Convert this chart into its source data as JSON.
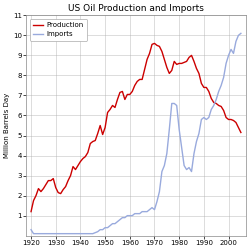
{
  "title": "US Oil Production and Imports",
  "ylabel": "Million Barrels Day",
  "xlim": [
    1918,
    2007
  ],
  "ylim": [
    0,
    11
  ],
  "yticks": [
    1,
    2,
    3,
    4,
    5,
    6,
    7,
    8,
    9,
    10,
    11
  ],
  "xticks": [
    1920,
    1930,
    1940,
    1950,
    1960,
    1970,
    1980,
    1990,
    2000
  ],
  "production_color": "#cc0000",
  "imports_color": "#99aadd",
  "bg_color": "#ffffff",
  "grid_color": "#aaaaaa",
  "production": [
    [
      1920,
      1.2
    ],
    [
      1921,
      1.75
    ],
    [
      1922,
      2.0
    ],
    [
      1923,
      2.35
    ],
    [
      1924,
      2.2
    ],
    [
      1925,
      2.35
    ],
    [
      1926,
      2.55
    ],
    [
      1927,
      2.75
    ],
    [
      1928,
      2.75
    ],
    [
      1929,
      2.85
    ],
    [
      1930,
      2.4
    ],
    [
      1931,
      2.15
    ],
    [
      1932,
      2.1
    ],
    [
      1933,
      2.3
    ],
    [
      1934,
      2.45
    ],
    [
      1935,
      2.75
    ],
    [
      1936,
      3.0
    ],
    [
      1937,
      3.45
    ],
    [
      1938,
      3.3
    ],
    [
      1939,
      3.5
    ],
    [
      1940,
      3.7
    ],
    [
      1941,
      3.85
    ],
    [
      1942,
      3.95
    ],
    [
      1943,
      4.15
    ],
    [
      1944,
      4.6
    ],
    [
      1945,
      4.7
    ],
    [
      1946,
      4.75
    ],
    [
      1947,
      5.1
    ],
    [
      1948,
      5.5
    ],
    [
      1949,
      5.05
    ],
    [
      1950,
      5.4
    ],
    [
      1951,
      6.15
    ],
    [
      1952,
      6.3
    ],
    [
      1953,
      6.5
    ],
    [
      1954,
      6.4
    ],
    [
      1955,
      6.8
    ],
    [
      1956,
      7.15
    ],
    [
      1957,
      7.2
    ],
    [
      1958,
      6.8
    ],
    [
      1959,
      7.05
    ],
    [
      1960,
      7.05
    ],
    [
      1961,
      7.2
    ],
    [
      1962,
      7.5
    ],
    [
      1963,
      7.7
    ],
    [
      1964,
      7.8
    ],
    [
      1965,
      7.8
    ],
    [
      1966,
      8.3
    ],
    [
      1967,
      8.8
    ],
    [
      1968,
      9.1
    ],
    [
      1969,
      9.55
    ],
    [
      1970,
      9.6
    ],
    [
      1971,
      9.5
    ],
    [
      1972,
      9.45
    ],
    [
      1973,
      9.2
    ],
    [
      1974,
      8.8
    ],
    [
      1975,
      8.4
    ],
    [
      1976,
      8.1
    ],
    [
      1977,
      8.25
    ],
    [
      1978,
      8.7
    ],
    [
      1979,
      8.55
    ],
    [
      1980,
      8.6
    ],
    [
      1981,
      8.6
    ],
    [
      1982,
      8.65
    ],
    [
      1983,
      8.7
    ],
    [
      1984,
      8.9
    ],
    [
      1985,
      9.0
    ],
    [
      1986,
      8.7
    ],
    [
      1987,
      8.35
    ],
    [
      1988,
      8.1
    ],
    [
      1989,
      7.6
    ],
    [
      1990,
      7.4
    ],
    [
      1991,
      7.4
    ],
    [
      1992,
      7.2
    ],
    [
      1993,
      6.85
    ],
    [
      1994,
      6.65
    ],
    [
      1995,
      6.6
    ],
    [
      1996,
      6.5
    ],
    [
      1997,
      6.45
    ],
    [
      1998,
      6.25
    ],
    [
      1999,
      5.9
    ],
    [
      2000,
      5.8
    ],
    [
      2001,
      5.8
    ],
    [
      2002,
      5.75
    ],
    [
      2003,
      5.65
    ],
    [
      2004,
      5.4
    ],
    [
      2005,
      5.15
    ]
  ],
  "imports": [
    [
      1920,
      0.3
    ],
    [
      1921,
      0.1
    ],
    [
      1922,
      0.1
    ],
    [
      1923,
      0.1
    ],
    [
      1924,
      0.1
    ],
    [
      1925,
      0.1
    ],
    [
      1926,
      0.1
    ],
    [
      1927,
      0.1
    ],
    [
      1928,
      0.1
    ],
    [
      1929,
      0.1
    ],
    [
      1930,
      0.1
    ],
    [
      1931,
      0.1
    ],
    [
      1932,
      0.1
    ],
    [
      1933,
      0.1
    ],
    [
      1934,
      0.1
    ],
    [
      1935,
      0.1
    ],
    [
      1936,
      0.1
    ],
    [
      1937,
      0.1
    ],
    [
      1938,
      0.1
    ],
    [
      1939,
      0.1
    ],
    [
      1940,
      0.1
    ],
    [
      1941,
      0.1
    ],
    [
      1942,
      0.1
    ],
    [
      1943,
      0.1
    ],
    [
      1944,
      0.1
    ],
    [
      1945,
      0.1
    ],
    [
      1946,
      0.15
    ],
    [
      1947,
      0.2
    ],
    [
      1948,
      0.3
    ],
    [
      1949,
      0.3
    ],
    [
      1950,
      0.4
    ],
    [
      1951,
      0.4
    ],
    [
      1952,
      0.5
    ],
    [
      1953,
      0.6
    ],
    [
      1954,
      0.6
    ],
    [
      1955,
      0.7
    ],
    [
      1956,
      0.8
    ],
    [
      1957,
      0.9
    ],
    [
      1958,
      0.9
    ],
    [
      1959,
      1.0
    ],
    [
      1960,
      1.0
    ],
    [
      1961,
      1.0
    ],
    [
      1962,
      1.1
    ],
    [
      1963,
      1.1
    ],
    [
      1964,
      1.1
    ],
    [
      1965,
      1.2
    ],
    [
      1966,
      1.2
    ],
    [
      1967,
      1.2
    ],
    [
      1968,
      1.3
    ],
    [
      1969,
      1.4
    ],
    [
      1970,
      1.3
    ],
    [
      1971,
      1.7
    ],
    [
      1972,
      2.2
    ],
    [
      1973,
      3.2
    ],
    [
      1974,
      3.5
    ],
    [
      1975,
      4.1
    ],
    [
      1976,
      5.3
    ],
    [
      1977,
      6.6
    ],
    [
      1978,
      6.6
    ],
    [
      1979,
      6.5
    ],
    [
      1980,
      5.3
    ],
    [
      1981,
      4.4
    ],
    [
      1982,
      3.5
    ],
    [
      1983,
      3.3
    ],
    [
      1984,
      3.4
    ],
    [
      1985,
      3.2
    ],
    [
      1986,
      4.1
    ],
    [
      1987,
      4.7
    ],
    [
      1988,
      5.1
    ],
    [
      1989,
      5.8
    ],
    [
      1990,
      5.9
    ],
    [
      1991,
      5.8
    ],
    [
      1992,
      5.9
    ],
    [
      1993,
      6.3
    ],
    [
      1994,
      6.5
    ],
    [
      1995,
      6.8
    ],
    [
      1996,
      7.2
    ],
    [
      1997,
      7.5
    ],
    [
      1998,
      7.9
    ],
    [
      1999,
      8.6
    ],
    [
      2000,
      9.0
    ],
    [
      2001,
      9.3
    ],
    [
      2002,
      9.1
    ],
    [
      2003,
      9.7
    ],
    [
      2004,
      10.0
    ],
    [
      2005,
      10.1
    ]
  ]
}
